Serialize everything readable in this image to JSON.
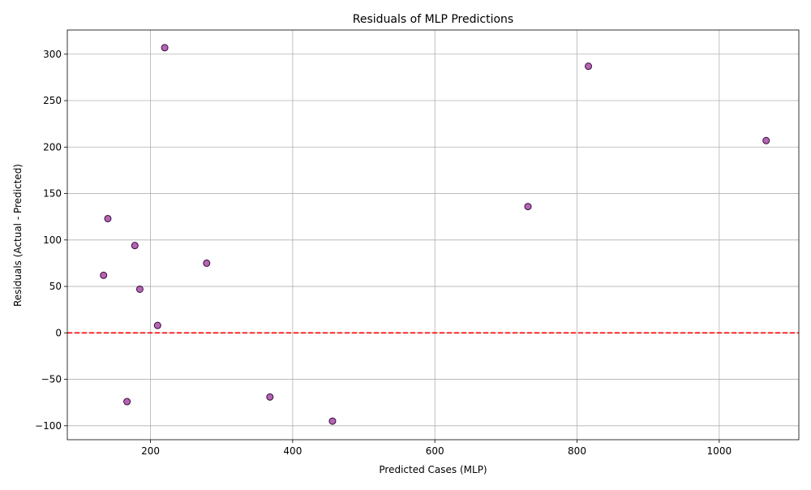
{
  "chart_data": {
    "type": "scatter",
    "title": "Residuals of MLP Predictions",
    "xlabel": "Predicted Cases (MLP)",
    "ylabel": "Residuals (Actual - Predicted)",
    "xlim": [
      83,
      1112
    ],
    "ylim": [
      -115,
      326
    ],
    "xticks": [
      200,
      400,
      600,
      800,
      1000
    ],
    "yticks": [
      -100,
      -50,
      0,
      50,
      100,
      150,
      200,
      250,
      300
    ],
    "grid": true,
    "reference_line": {
      "y": 0,
      "color": "#ff0000",
      "style": "dashed"
    },
    "marker_color": "#800080",
    "marker_edge_color": "#3a0a3a",
    "points": [
      {
        "x": 134,
        "y": 62
      },
      {
        "x": 140,
        "y": 123
      },
      {
        "x": 167,
        "y": -74
      },
      {
        "x": 178,
        "y": 94
      },
      {
        "x": 185,
        "y": 47
      },
      {
        "x": 210,
        "y": 8
      },
      {
        "x": 220,
        "y": 307
      },
      {
        "x": 279,
        "y": 75
      },
      {
        "x": 368,
        "y": -69
      },
      {
        "x": 456,
        "y": -95
      },
      {
        "x": 731,
        "y": 136
      },
      {
        "x": 816,
        "y": 287
      },
      {
        "x": 1066,
        "y": 207
      }
    ]
  }
}
